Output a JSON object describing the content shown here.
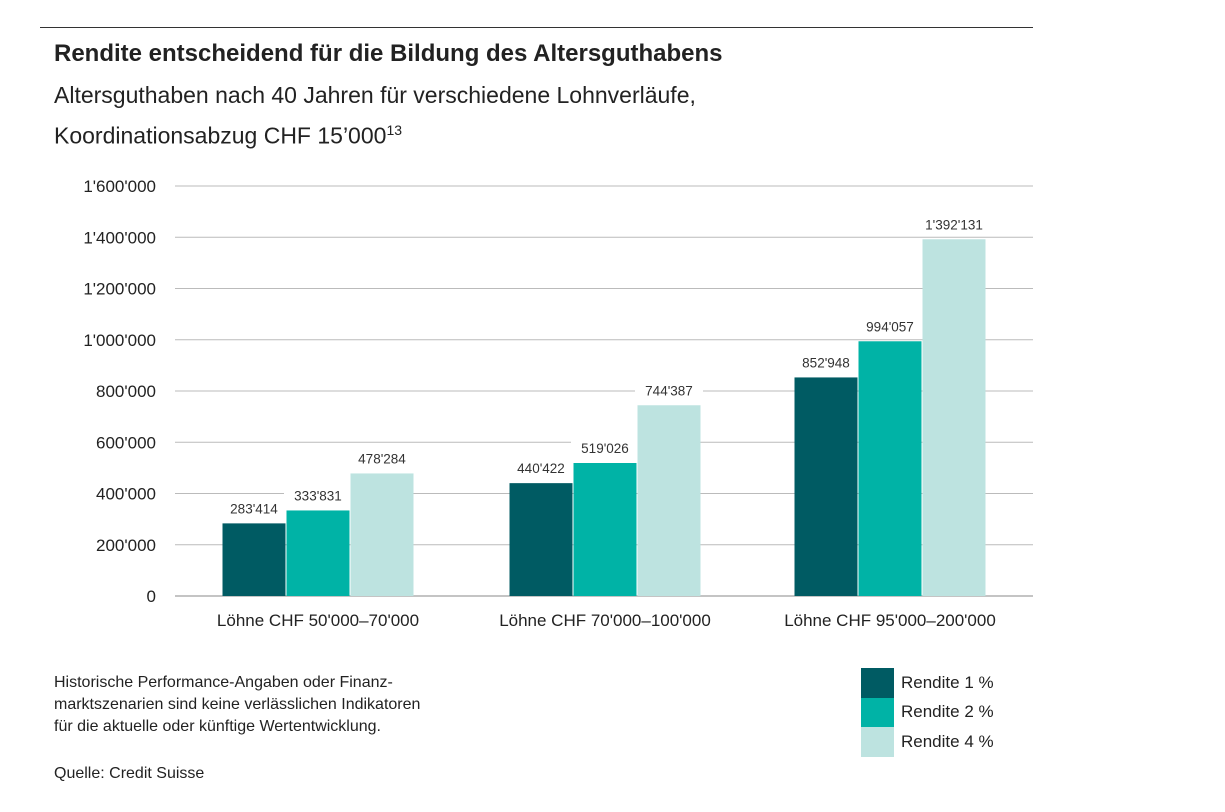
{
  "title": "Rendite entscheidend für die Bildung des Altersguthabens",
  "subtitle_line1": "Altersguthaben nach 40 Jahren für verschiedene Lohnverläufe,",
  "subtitle_line2": "Koordinationsabzug CHF 15’000",
  "subtitle_sup": "13",
  "note": "Historische Performance-Angaben oder Finanzmarktszenarien sind keine verlässlichen Indikatoren für die aktuelle oder künftige Wertentwicklung.",
  "note_lines": [
    "Historische Performance-Angaben oder Finanz-",
    "marktszenarien sind keine verlässlichen Indikatoren",
    "für die aktuelle oder künftige Wertentwicklung."
  ],
  "source": "Quelle: Credit Suisse",
  "chart_data": {
    "type": "bar",
    "categories": [
      "Löhne CHF 50'000–70'000",
      "Löhne CHF 70'000–100'000",
      "Löhne CHF 95'000–200'000"
    ],
    "series": [
      {
        "name": "Rendite 1 %",
        "color": "#005b63",
        "values": [
          283414,
          440422,
          852948
        ],
        "labels": [
          "283'414",
          "440'422",
          "852'948"
        ]
      },
      {
        "name": "Rendite 2 %",
        "color": "#00b3a6",
        "values": [
          333831,
          519026,
          994057
        ],
        "labels": [
          "333'831",
          "519'026",
          "994'057"
        ]
      },
      {
        "name": "Rendite 4 %",
        "color": "#bde3e0",
        "values": [
          478284,
          744387,
          1392131
        ],
        "labels": [
          "478'284",
          "744'387",
          "1'392'131"
        ]
      }
    ],
    "ylim": [
      0,
      1600000
    ],
    "yticks": [
      0,
      200000,
      400000,
      600000,
      800000,
      1000000,
      1200000,
      1400000,
      1600000
    ],
    "ytick_labels": [
      "0",
      "200'000",
      "400'000",
      "600'000",
      "800'000",
      "1'000'000",
      "1'200'000",
      "1'400'000",
      "1'600'000"
    ],
    "grid": true,
    "legend": "bottom-right"
  }
}
